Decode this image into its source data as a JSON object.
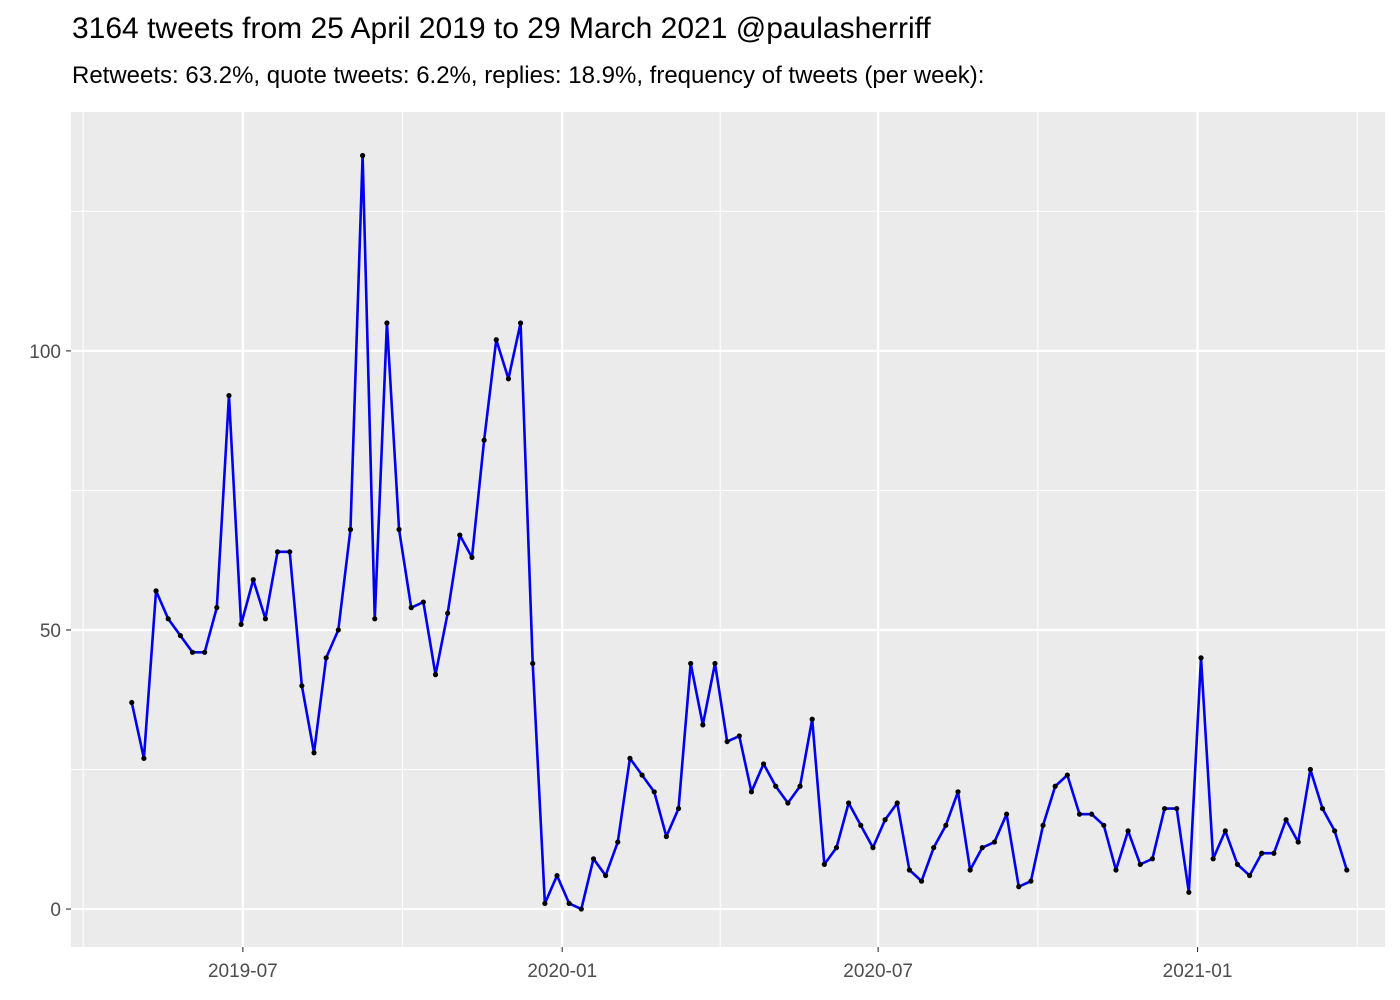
{
  "header": {
    "title": "3164 tweets from 25 April 2019 to 29 March 2021 @paulasherriff",
    "subtitle": "Retweets: 63.2%, quote tweets: 6.2%, replies: 18.9%, frequency of tweets (per week):"
  },
  "chart_data": {
    "type": "line",
    "title": "3164 tweets from 25 April 2019 to 29 March 2021 @paulasherriff",
    "subtitle": "Retweets: 63.2%, quote tweets: 6.2%, replies: 18.9%, frequency of tweets (per week):",
    "xlabel": "",
    "ylabel": "",
    "x_ticks": [
      {
        "date": "2019-07-01",
        "label": "2019-07"
      },
      {
        "date": "2020-01-01",
        "label": "2020-01"
      },
      {
        "date": "2020-07-01",
        "label": "2020-07"
      },
      {
        "date": "2021-01-01",
        "label": "2021-01"
      }
    ],
    "y_ticks": [
      0,
      50,
      100
    ],
    "xlim": [
      "2019-03-24",
      "2021-04-19"
    ],
    "ylim": [
      -6.8,
      142.8
    ],
    "grid": true,
    "line_color": "#0000ee",
    "point_color": "#000000",
    "panel_background": "#ebebeb",
    "x": [
      "2019-04-28",
      "2019-05-05",
      "2019-05-12",
      "2019-05-19",
      "2019-05-26",
      "2019-06-02",
      "2019-06-09",
      "2019-06-16",
      "2019-06-23",
      "2019-06-30",
      "2019-07-07",
      "2019-07-14",
      "2019-07-21",
      "2019-07-28",
      "2019-08-04",
      "2019-08-11",
      "2019-08-18",
      "2019-08-25",
      "2019-09-01",
      "2019-09-08",
      "2019-09-15",
      "2019-09-22",
      "2019-09-29",
      "2019-10-06",
      "2019-10-13",
      "2019-10-20",
      "2019-10-27",
      "2019-11-03",
      "2019-11-10",
      "2019-11-17",
      "2019-11-24",
      "2019-12-01",
      "2019-12-08",
      "2019-12-15",
      "2019-12-22",
      "2019-12-29",
      "2020-01-05",
      "2020-01-12",
      "2020-01-19",
      "2020-01-26",
      "2020-02-02",
      "2020-02-09",
      "2020-02-16",
      "2020-02-23",
      "2020-03-01",
      "2020-03-08",
      "2020-03-15",
      "2020-03-22",
      "2020-03-29",
      "2020-04-05",
      "2020-04-12",
      "2020-04-19",
      "2020-04-26",
      "2020-05-03",
      "2020-05-10",
      "2020-05-17",
      "2020-05-24",
      "2020-05-31",
      "2020-06-07",
      "2020-06-14",
      "2020-06-21",
      "2020-06-28",
      "2020-07-05",
      "2020-07-12",
      "2020-07-19",
      "2020-07-26",
      "2020-08-02",
      "2020-08-09",
      "2020-08-16",
      "2020-08-23",
      "2020-08-30",
      "2020-09-06",
      "2020-09-13",
      "2020-09-20",
      "2020-09-27",
      "2020-10-04",
      "2020-10-11",
      "2020-10-18",
      "2020-10-25",
      "2020-11-01",
      "2020-11-08",
      "2020-11-15",
      "2020-11-22",
      "2020-11-29",
      "2020-12-06",
      "2020-12-13",
      "2020-12-20",
      "2020-12-27",
      "2021-01-03",
      "2021-01-10",
      "2021-01-17",
      "2021-01-24",
      "2021-01-31",
      "2021-02-07",
      "2021-02-14",
      "2021-02-21",
      "2021-02-28",
      "2021-03-07",
      "2021-03-14",
      "2021-03-21",
      "2021-03-28"
    ],
    "series": [
      {
        "values": [
          37,
          27,
          57,
          52,
          49,
          46,
          46,
          54,
          92,
          51,
          59,
          52,
          64,
          64,
          40,
          28,
          45,
          50,
          68,
          135,
          52,
          105,
          68,
          54,
          55,
          42,
          53,
          67,
          63,
          84,
          102,
          95,
          105,
          44,
          1,
          6,
          1,
          0,
          9,
          6,
          12,
          27,
          24,
          21,
          13,
          18,
          44,
          33,
          44,
          30,
          31,
          21,
          26,
          22,
          19,
          22,
          34,
          8,
          11,
          19,
          15,
          11,
          16,
          19,
          7,
          5,
          11,
          15,
          21,
          7,
          11,
          12,
          17,
          4,
          5,
          15,
          22,
          24,
          17,
          17,
          15,
          7,
          14,
          8,
          9,
          18,
          18,
          3,
          45,
          9,
          14,
          8,
          6,
          10,
          10,
          16,
          12,
          25,
          18,
          14,
          7
        ]
      }
    ]
  }
}
